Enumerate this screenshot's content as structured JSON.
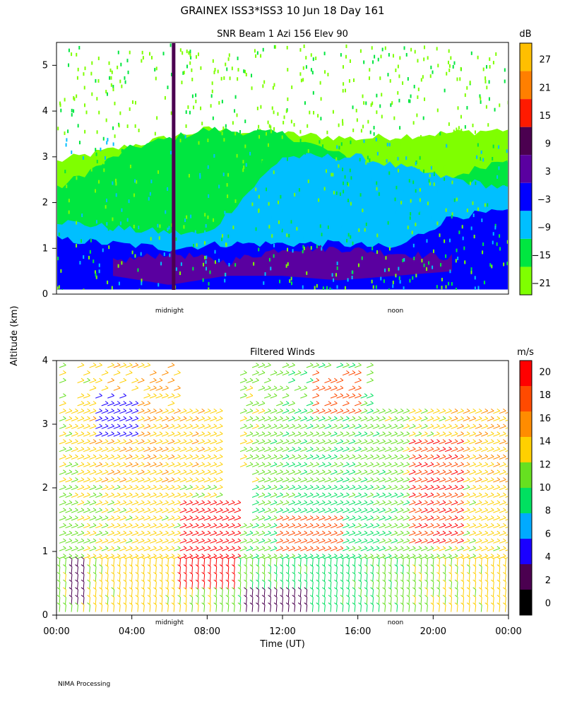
{
  "header": {
    "title": "GRAINEX ISS3*ISS3  10 Jun 18 Day 161",
    "ylabel": "Altitude (km)",
    "footer": "NIMA Processing"
  },
  "colors": {
    "snr_scale": [
      "#7fff00",
      "#00e640",
      "#00bfff",
      "#0000ff",
      "#5a00a0",
      "#4b0050",
      "#ff1a00",
      "#ff7f00",
      "#ffbf00"
    ],
    "wind_scale": [
      "#000000",
      "#4b0050",
      "#1a00ff",
      "#00aaff",
      "#00e060",
      "#66e020",
      "#ffd000",
      "#ff8c00",
      "#ff4a00",
      "#ff0000"
    ]
  },
  "chart_data": [
    {
      "type": "heatmap",
      "title": "SNR Beam 1 Azi 156 Elev 90",
      "ylabel": "Altitude (km)",
      "ylim": [
        0,
        5.5
      ],
      "yticks": [
        "0",
        "1",
        "2",
        "3",
        "4",
        "5"
      ],
      "xticks_labels": [
        "midnight",
        "noon"
      ],
      "colorbar": {
        "unit": "dB",
        "ticks": [
          "27",
          "21",
          "15",
          "9",
          "3",
          "−3",
          "−9",
          "−15",
          "−21"
        ]
      },
      "layers": [
        {
          "level": "-21",
          "x": [
            0,
            8,
            16,
            24
          ],
          "top": [
            2.9,
            3.6,
            3.4,
            3.6
          ],
          "bottom": [
            0.1,
            0.1,
            0.1,
            0.1
          ]
        },
        {
          "level": "-15",
          "x": [
            0,
            4,
            8,
            12,
            16,
            20,
            24
          ],
          "top": [
            2.3,
            3.2,
            3.6,
            3.5,
            2.9,
            2.4,
            3.0
          ],
          "bottom": [
            0.1,
            0.1,
            0.1,
            0.1,
            0.1,
            0.1,
            0.1
          ]
        },
        {
          "level": "-9",
          "x": [
            0,
            4,
            8,
            12,
            16,
            20,
            24
          ],
          "top": [
            1.6,
            1.4,
            1.3,
            3.0,
            3.0,
            2.6,
            2.3
          ],
          "bottom": [
            0.1,
            0.1,
            0.1,
            0.1,
            0.1,
            0.1,
            0.1
          ]
        },
        {
          "level": "-3",
          "x": [
            0,
            3,
            6,
            9,
            12,
            15,
            18,
            21,
            24
          ],
          "top": [
            1.2,
            1.1,
            1.0,
            1.1,
            1.1,
            1.1,
            1.0,
            1.7,
            1.8
          ],
          "bottom": [
            0.1,
            0.1,
            0.1,
            0.1,
            0.1,
            0.1,
            0.1,
            0.1,
            0.1
          ]
        },
        {
          "level": "3",
          "x": [
            3,
            6,
            9,
            12,
            15,
            18,
            21
          ],
          "top": [
            0.7,
            0.9,
            0.7,
            1.0,
            1.0,
            0.9,
            0.8
          ],
          "bottom": [
            0.4,
            0.2,
            0.4,
            0.4,
            0.3,
            0.4,
            0.5
          ]
        }
      ],
      "vertical_band": {
        "x": 6.2,
        "level": "9"
      }
    },
    {
      "type": "scatter",
      "title": "Filtered Winds",
      "xlabel": "Time (UT)",
      "ylim": [
        0,
        4
      ],
      "yticks": [
        "0",
        "1",
        "2",
        "3",
        "4"
      ],
      "xticks": [
        "00:00",
        "04:00",
        "08:00",
        "12:00",
        "16:00",
        "20:00",
        "00:00"
      ],
      "xticks_labels": [
        "midnight",
        "noon"
      ],
      "colorbar": {
        "unit": "m/s",
        "ticks": [
          "20",
          "18",
          "16",
          "14",
          "12",
          "10",
          "8",
          "6",
          "4",
          "2",
          "0"
        ]
      },
      "speed_regions": [
        {
          "speed": 19,
          "x": [
            6.5,
            9.5
          ],
          "y": [
            0.4,
            1.8
          ]
        },
        {
          "speed": 17,
          "x": [
            11.5,
            15
          ],
          "y": [
            0.9,
            1.5
          ]
        },
        {
          "speed": 17,
          "x": [
            13.5,
            16
          ],
          "y": [
            3.1,
            3.8
          ]
        },
        {
          "speed": 18,
          "x": [
            18.5,
            21.5
          ],
          "y": [
            1.1,
            2.8
          ]
        },
        {
          "speed": 3,
          "x": [
            0.5,
            1.6
          ],
          "y": [
            0.1,
            0.8
          ]
        },
        {
          "speed": 3,
          "x": [
            10,
            13.5
          ],
          "y": [
            0.05,
            0.4
          ]
        },
        {
          "speed": 5,
          "x": [
            2,
            4
          ],
          "y": [
            2.8,
            3.5
          ]
        }
      ]
    }
  ]
}
